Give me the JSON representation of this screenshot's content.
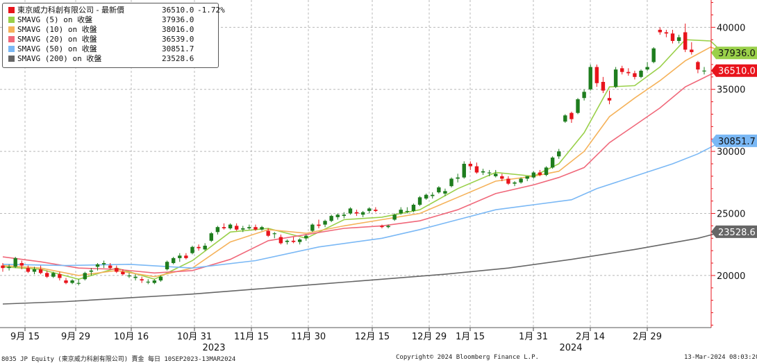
{
  "legend": {
    "header": {
      "label": "東京威力科創有限公司 - 最新價",
      "value": "36510.0",
      "change": "-1.72%",
      "color": "#e8141c"
    },
    "items": [
      {
        "label": "SMAVG (5)  on 收盤",
        "value": "37936.0",
        "color": "#9ad04a"
      },
      {
        "label": "SMAVG (10)  on 收盤",
        "value": "38016.0",
        "color": "#f5b25a"
      },
      {
        "label": "SMAVG (20)  on 收盤",
        "value": "36539.0",
        "color": "#f0687a"
      },
      {
        "label": "SMAVG (50)  on 收盤",
        "value": "30851.7",
        "color": "#7ab8f5"
      },
      {
        "label": "SMAVG (200)  on 收盤",
        "value": "23528.6",
        "color": "#666666"
      }
    ]
  },
  "footer": {
    "left": "8035 JP Equity (東京威力科創有限公司) 賣金  每日 10SEP2023-13MAR2024",
    "center": "Copyright© 2024 Bloomberg Finance L.P.",
    "right": "13-Mar-2024 08:03:20"
  },
  "chart_data": {
    "type": "candlestick",
    "grid": true,
    "x_labels": [
      "9月 15",
      "9月 29",
      "10月 16",
      "10月 31",
      "11月 15",
      "11月 30",
      "12月 15",
      "12月 29",
      "1月 15",
      "1月 31",
      "2月 14",
      "2月 29"
    ],
    "year_labels": [
      "2023",
      "2024"
    ],
    "y_ticks": [
      20000,
      25000,
      30000,
      35000,
      40000
    ],
    "ylim": [
      15800,
      42200
    ],
    "last_value_tags": [
      {
        "text": "37936.0",
        "value": 37936,
        "color": "#9ad04a"
      },
      {
        "text": "36510.0",
        "value": 36510,
        "color": "#e8141c"
      },
      {
        "text": "30851.7",
        "value": 30851.7,
        "color": "#7ab8f5"
      },
      {
        "text": "23528.6",
        "value": 23528.6,
        "color": "#666666"
      }
    ],
    "candles": [
      [
        20800,
        21000,
        20300,
        20600
      ],
      [
        20600,
        20900,
        20400,
        20700
      ],
      [
        20700,
        21500,
        20600,
        21400
      ],
      [
        21000,
        21200,
        20500,
        20800
      ],
      [
        20600,
        20800,
        20200,
        20300
      ],
      [
        20300,
        20700,
        20100,
        20500
      ],
      [
        20500,
        20800,
        20100,
        20200
      ],
      [
        20200,
        20400,
        19800,
        19900
      ],
      [
        19900,
        20300,
        19800,
        20200
      ],
      [
        20100,
        20300,
        19600,
        19800
      ],
      [
        19600,
        19800,
        19300,
        19400
      ],
      [
        19400,
        19700,
        19300,
        19600
      ],
      [
        19400,
        19700,
        19200,
        19400
      ],
      [
        19700,
        20300,
        19600,
        20200
      ],
      [
        20300,
        20600,
        20000,
        20400
      ],
      [
        20700,
        21000,
        20400,
        20900
      ],
      [
        20900,
        21200,
        20600,
        21000
      ],
      [
        20800,
        21000,
        20500,
        20600
      ],
      [
        20600,
        20800,
        20200,
        20300
      ],
      [
        20300,
        20500,
        20000,
        20100
      ],
      [
        20000,
        20200,
        19800,
        20000
      ],
      [
        19800,
        20100,
        19600,
        19900
      ],
      [
        19700,
        19900,
        19400,
        19600
      ],
      [
        19500,
        19700,
        19300,
        19500
      ],
      [
        19400,
        19700,
        19300,
        19600
      ],
      [
        19600,
        20000,
        19500,
        19900
      ],
      [
        20500,
        21200,
        20400,
        21100
      ],
      [
        21000,
        21500,
        20900,
        21400
      ],
      [
        21400,
        21800,
        21100,
        21600
      ],
      [
        21600,
        21800,
        21300,
        21400
      ],
      [
        21800,
        22400,
        21700,
        22300
      ],
      [
        22300,
        22500,
        22000,
        22200
      ],
      [
        22100,
        22600,
        22000,
        22400
      ],
      [
        22800,
        23500,
        22700,
        23400
      ],
      [
        23500,
        24000,
        23300,
        23900
      ],
      [
        23900,
        24200,
        23700,
        23800
      ],
      [
        23800,
        24200,
        23700,
        24100
      ],
      [
        24000,
        24200,
        23600,
        23700
      ],
      [
        23700,
        24000,
        23500,
        23800
      ],
      [
        23800,
        24100,
        23700,
        23900
      ],
      [
        23900,
        24100,
        23600,
        23700
      ],
      [
        23700,
        24000,
        23600,
        23900
      ],
      [
        23600,
        23800,
        23100,
        23200
      ],
      [
        23400,
        23500,
        23000,
        23400
      ],
      [
        23100,
        23300,
        22500,
        22600
      ],
      [
        22700,
        22900,
        22500,
        22800
      ],
      [
        22800,
        23100,
        22600,
        22700
      ],
      [
        22700,
        23000,
        22500,
        22900
      ],
      [
        23000,
        23300,
        22800,
        23200
      ],
      [
        23600,
        24200,
        23500,
        24100
      ],
      [
        24100,
        24500,
        23800,
        24000
      ],
      [
        24100,
        24500,
        23900,
        24400
      ],
      [
        24400,
        24900,
        24300,
        24800
      ],
      [
        24700,
        25000,
        24500,
        24900
      ],
      [
        24800,
        25100,
        24600,
        24900
      ],
      [
        25000,
        25500,
        24900,
        25400
      ],
      [
        25100,
        25300,
        24800,
        25000
      ],
      [
        24900,
        25200,
        24700,
        25100
      ],
      [
        25200,
        25500,
        25000,
        25400
      ],
      [
        25300,
        25500,
        25100,
        25200
      ],
      [
        24000,
        24100,
        23800,
        23900
      ],
      [
        23900,
        24100,
        23800,
        24000
      ],
      [
        24500,
        25000,
        24400,
        24900
      ],
      [
        25000,
        25500,
        24900,
        25300
      ],
      [
        25200,
        25500,
        25000,
        25200
      ],
      [
        25200,
        25800,
        25100,
        25700
      ],
      [
        25700,
        26400,
        25600,
        26300
      ],
      [
        26200,
        26600,
        26100,
        26500
      ],
      [
        26400,
        26700,
        26200,
        26500
      ],
      [
        26700,
        27200,
        26600,
        27100
      ],
      [
        26600,
        27000,
        26400,
        26800
      ],
      [
        27200,
        27900,
        27100,
        27800
      ],
      [
        27800,
        28200,
        27500,
        27900
      ],
      [
        27900,
        29200,
        27800,
        29000
      ],
      [
        29000,
        29200,
        28500,
        28800
      ],
      [
        28800,
        29100,
        28200,
        28300
      ],
      [
        28300,
        28600,
        28100,
        28400
      ],
      [
        28300,
        28500,
        28000,
        28300
      ],
      [
        28000,
        28500,
        27900,
        28200
      ],
      [
        28000,
        28200,
        27600,
        27800
      ],
      [
        27800,
        28000,
        27300,
        27400
      ],
      [
        27400,
        27600,
        27200,
        27500
      ],
      [
        27500,
        27900,
        27400,
        27800
      ],
      [
        27800,
        28000,
        27600,
        28000
      ],
      [
        27900,
        28400,
        27800,
        28300
      ],
      [
        28300,
        28500,
        28000,
        28100
      ],
      [
        28100,
        28800,
        28000,
        28700
      ],
      [
        28700,
        29600,
        28600,
        29500
      ],
      [
        29600,
        30200,
        29400,
        30000
      ],
      [
        32400,
        33000,
        32300,
        32900
      ],
      [
        33100,
        33200,
        32300,
        32600
      ],
      [
        33100,
        34300,
        33000,
        34200
      ],
      [
        34300,
        35000,
        34100,
        34800
      ],
      [
        35000,
        37000,
        34900,
        36800
      ],
      [
        36800,
        37000,
        35200,
        35500
      ],
      [
        35600,
        36000,
        34700,
        34900
      ],
      [
        34300,
        34900,
        33800,
        34100
      ],
      [
        35200,
        36800,
        35100,
        36600
      ],
      [
        36700,
        36900,
        36200,
        36400
      ],
      [
        36400,
        36700,
        36100,
        36300
      ],
      [
        36300,
        36500,
        35800,
        36000
      ],
      [
        36000,
        36600,
        35900,
        36500
      ],
      [
        36600,
        37200,
        36500,
        36800
      ],
      [
        37200,
        38400,
        37100,
        38300
      ],
      [
        39800,
        40000,
        39400,
        39600
      ],
      [
        39600,
        39800,
        39200,
        39500
      ],
      [
        39500,
        39800,
        38700,
        38900
      ],
      [
        38900,
        39400,
        38700,
        39200
      ],
      [
        39600,
        40300,
        38000,
        38200
      ],
      [
        38200,
        38800,
        37800,
        38000
      ],
      [
        37200,
        37300,
        36300,
        36600
      ],
      [
        36500,
        36800,
        36200,
        36510
      ]
    ],
    "series": [
      {
        "name": "SMAVG (5)",
        "color": "#9ad04a",
        "points": [
          [
            0,
            20700
          ],
          [
            6,
            20500
          ],
          [
            12,
            19700
          ],
          [
            18,
            20600
          ],
          [
            24,
            19700
          ],
          [
            30,
            21200
          ],
          [
            36,
            23500
          ],
          [
            42,
            23800
          ],
          [
            48,
            23000
          ],
          [
            54,
            24500
          ],
          [
            60,
            24700
          ],
          [
            66,
            25300
          ],
          [
            72,
            27000
          ],
          [
            78,
            28300
          ],
          [
            84,
            28000
          ],
          [
            88,
            29000
          ],
          [
            92,
            31500
          ],
          [
            96,
            35200
          ],
          [
            100,
            35300
          ],
          [
            104,
            36800
          ],
          [
            108,
            39000
          ],
          [
            112,
            38900
          ],
          [
            114,
            37936
          ]
        ]
      },
      {
        "name": "SMAVG (10)",
        "color": "#f5b25a",
        "points": [
          [
            0,
            20800
          ],
          [
            6,
            20600
          ],
          [
            12,
            20000
          ],
          [
            18,
            20400
          ],
          [
            24,
            19900
          ],
          [
            30,
            20600
          ],
          [
            36,
            22700
          ],
          [
            42,
            23700
          ],
          [
            48,
            23400
          ],
          [
            54,
            24000
          ],
          [
            60,
            24500
          ],
          [
            66,
            25000
          ],
          [
            72,
            26300
          ],
          [
            78,
            27600
          ],
          [
            84,
            28000
          ],
          [
            88,
            28400
          ],
          [
            92,
            30000
          ],
          [
            96,
            32800
          ],
          [
            100,
            34300
          ],
          [
            104,
            35700
          ],
          [
            108,
            37300
          ],
          [
            112,
            38400
          ],
          [
            114,
            38016
          ]
        ]
      },
      {
        "name": "SMAVG (20)",
        "color": "#f0687a",
        "points": [
          [
            0,
            21500
          ],
          [
            6,
            21100
          ],
          [
            12,
            20600
          ],
          [
            18,
            20500
          ],
          [
            24,
            20200
          ],
          [
            30,
            20400
          ],
          [
            36,
            21300
          ],
          [
            42,
            22800
          ],
          [
            48,
            23300
          ],
          [
            54,
            23800
          ],
          [
            60,
            24000
          ],
          [
            66,
            24400
          ],
          [
            72,
            25300
          ],
          [
            78,
            26600
          ],
          [
            84,
            27300
          ],
          [
            88,
            27900
          ],
          [
            92,
            28700
          ],
          [
            96,
            30700
          ],
          [
            100,
            32100
          ],
          [
            104,
            33500
          ],
          [
            108,
            35200
          ],
          [
            112,
            36200
          ],
          [
            114,
            36539
          ]
        ]
      },
      {
        "name": "SMAVG (50)",
        "color": "#7ab8f5",
        "points": [
          [
            0,
            20900
          ],
          [
            10,
            20800
          ],
          [
            20,
            20900
          ],
          [
            30,
            20600
          ],
          [
            40,
            21200
          ],
          [
            50,
            22300
          ],
          [
            60,
            23000
          ],
          [
            66,
            23700
          ],
          [
            72,
            24500
          ],
          [
            78,
            25300
          ],
          [
            84,
            25700
          ],
          [
            90,
            26100
          ],
          [
            94,
            27000
          ],
          [
            100,
            28000
          ],
          [
            106,
            29000
          ],
          [
            110,
            29800
          ],
          [
            114,
            30852
          ]
        ]
      },
      {
        "name": "SMAVG (200)",
        "color": "#666666",
        "points": [
          [
            0,
            17700
          ],
          [
            10,
            17900
          ],
          [
            20,
            18200
          ],
          [
            30,
            18500
          ],
          [
            40,
            18900
          ],
          [
            50,
            19300
          ],
          [
            60,
            19700
          ],
          [
            70,
            20100
          ],
          [
            80,
            20600
          ],
          [
            90,
            21300
          ],
          [
            100,
            22100
          ],
          [
            110,
            23000
          ],
          [
            114,
            23529
          ]
        ]
      }
    ]
  }
}
